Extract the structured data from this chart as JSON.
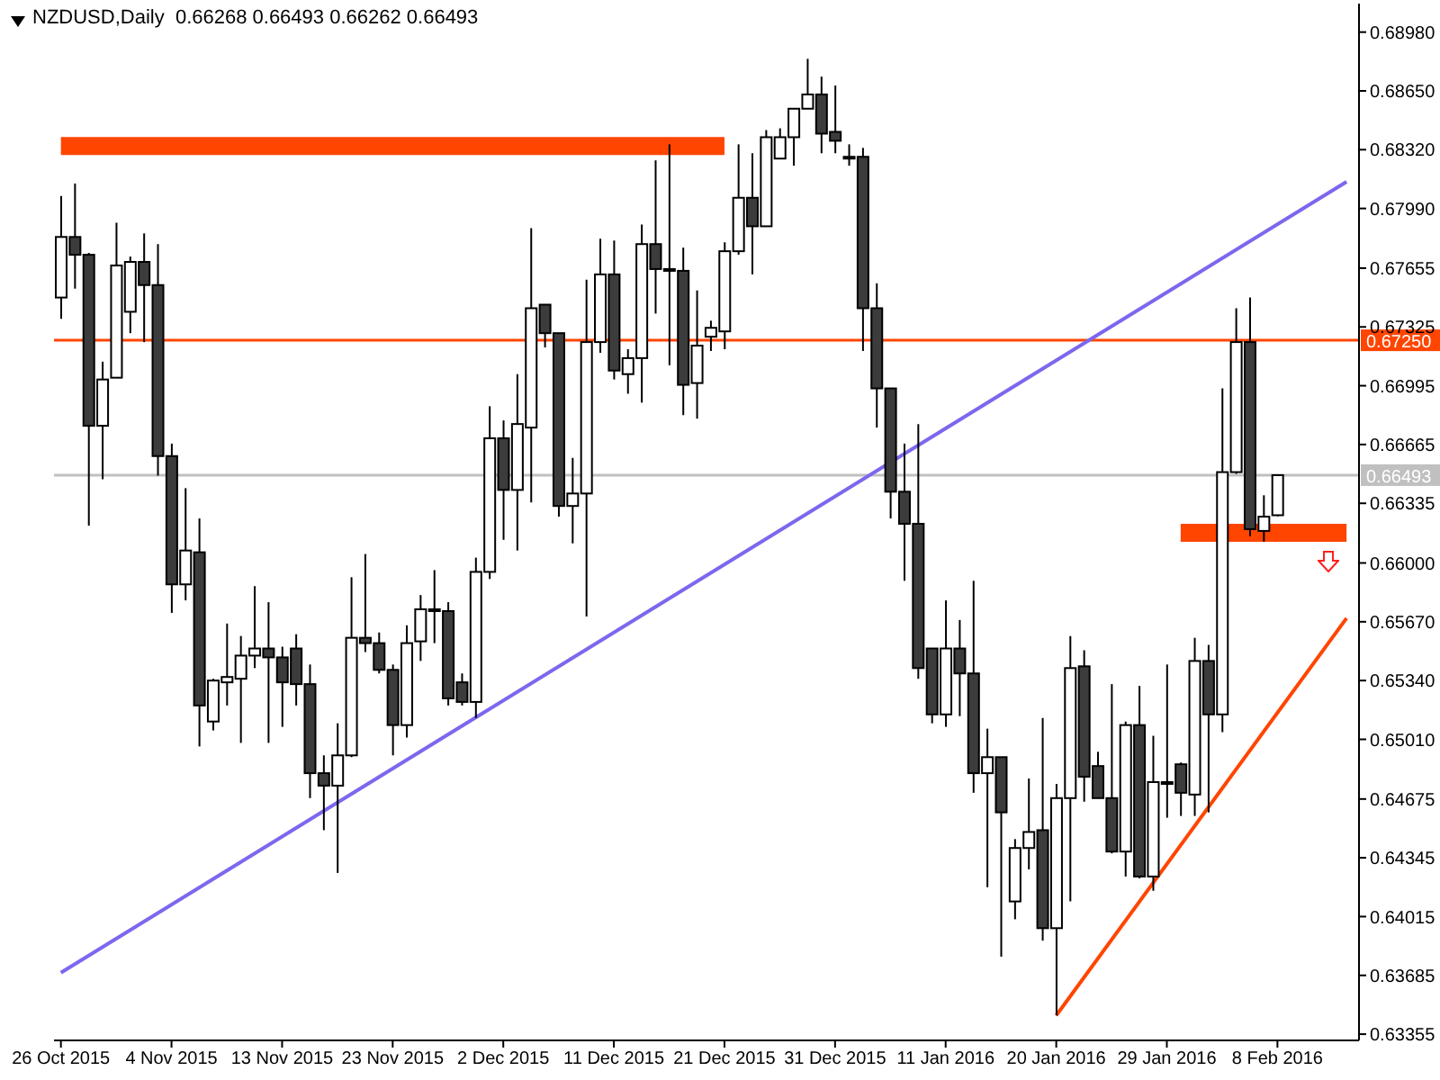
{
  "chart_data": {
    "type": "candlestick",
    "title": "NZDUSD,Daily  0.66268 0.66493 0.66262 0.66493",
    "categories": [
      "26 Oct 2015",
      null,
      null,
      null,
      null,
      null,
      null,
      null,
      "4 Nov 2015",
      null,
      null,
      null,
      null,
      null,
      null,
      null,
      "13 Nov 2015",
      null,
      null,
      null,
      null,
      null,
      null,
      null,
      "23 Nov 2015",
      null,
      null,
      null,
      null,
      null,
      null,
      null,
      "2 Dec 2015",
      null,
      null,
      null,
      null,
      null,
      null,
      null,
      "11 Dec 2015",
      null,
      null,
      null,
      null,
      null,
      null,
      null,
      "21 Dec 2015",
      null,
      null,
      null,
      null,
      null,
      null,
      null,
      "31 Dec 2015",
      null,
      null,
      null,
      null,
      null,
      null,
      null,
      "11 Jan 2016",
      null,
      null,
      null,
      null,
      null,
      null,
      null,
      "20 Jan 2016",
      null,
      null,
      null,
      null,
      null,
      null,
      null,
      "29 Jan 2016",
      null,
      null,
      null,
      null,
      null,
      null,
      null,
      "8 Feb 2016",
      null,
      null,
      null,
      null,
      null
    ],
    "ohlc": [
      [
        0.6749,
        0.6806,
        0.6737,
        0.6783
      ],
      [
        0.6783,
        0.6813,
        0.6754,
        0.6773
      ],
      [
        0.6773,
        0.6774,
        0.6621,
        0.6677
      ],
      [
        0.6677,
        0.6713,
        0.6647,
        0.6703
      ],
      [
        0.6704,
        0.6791,
        0.6704,
        0.6767
      ],
      [
        0.6741,
        0.6772,
        0.6729,
        0.6769
      ],
      [
        0.6769,
        0.6785,
        0.6724,
        0.6756
      ],
      [
        0.6756,
        0.6779,
        0.6649,
        0.666
      ],
      [
        0.666,
        0.6667,
        0.6572,
        0.6588
      ],
      [
        0.6588,
        0.6642,
        0.6579,
        0.6607
      ],
      [
        0.6606,
        0.6625,
        0.6497,
        0.652
      ],
      [
        0.6511,
        0.6535,
        0.6506,
        0.6534
      ],
      [
        0.6533,
        0.6566,
        0.652,
        0.6536
      ],
      [
        0.6535,
        0.6559,
        0.6499,
        0.6548
      ],
      [
        0.6548,
        0.6587,
        0.6541,
        0.6552
      ],
      [
        0.6552,
        0.6578,
        0.6499,
        0.6547
      ],
      [
        0.6547,
        0.6553,
        0.6508,
        0.6533
      ],
      [
        0.6552,
        0.656,
        0.652,
        0.6532
      ],
      [
        0.6532,
        0.6543,
        0.6468,
        0.6482
      ],
      [
        0.6482,
        0.6492,
        0.645,
        0.6475
      ],
      [
        0.6475,
        0.651,
        0.6426,
        0.6492
      ],
      [
        0.6492,
        0.6592,
        0.6491,
        0.6558
      ],
      [
        0.6558,
        0.6605,
        0.655,
        0.6555
      ],
      [
        0.6555,
        0.6561,
        0.6538,
        0.654
      ],
      [
        0.654,
        0.6543,
        0.6492,
        0.6509
      ],
      [
        0.6509,
        0.6565,
        0.6502,
        0.6555
      ],
      [
        0.6556,
        0.6582,
        0.6545,
        0.6574
      ],
      [
        0.6574,
        0.6596,
        0.6555,
        0.6574
      ],
      [
        0.6573,
        0.6578,
        0.652,
        0.6524
      ],
      [
        0.6533,
        0.6538,
        0.652,
        0.6522
      ],
      [
        0.6522,
        0.6603,
        0.6513,
        0.6595
      ],
      [
        0.6595,
        0.6688,
        0.6591,
        0.667
      ],
      [
        0.667,
        0.668,
        0.6613,
        0.6641
      ],
      [
        0.6641,
        0.6706,
        0.6607,
        0.6678
      ],
      [
        0.6676,
        0.6788,
        0.6634,
        0.6743
      ],
      [
        0.6745,
        0.6745,
        0.6721,
        0.6729
      ],
      [
        0.6729,
        0.6729,
        0.6626,
        0.6632
      ],
      [
        0.6632,
        0.6659,
        0.6611,
        0.6639
      ],
      [
        0.6639,
        0.6759,
        0.657,
        0.6724
      ],
      [
        0.6724,
        0.6782,
        0.6718,
        0.6762
      ],
      [
        0.6762,
        0.6781,
        0.6703,
        0.6708
      ],
      [
        0.6706,
        0.672,
        0.6695,
        0.6715
      ],
      [
        0.6715,
        0.679,
        0.669,
        0.6779
      ],
      [
        0.6779,
        0.6826,
        0.674,
        0.6765
      ],
      [
        0.6765,
        0.6835,
        0.6711,
        0.6764
      ],
      [
        0.6764,
        0.6777,
        0.6683,
        0.67
      ],
      [
        0.6701,
        0.6753,
        0.6681,
        0.6722
      ],
      [
        0.6727,
        0.6736,
        0.6719,
        0.6732
      ],
      [
        0.673,
        0.678,
        0.672,
        0.6775
      ],
      [
        0.6775,
        0.6835,
        0.6773,
        0.6805
      ],
      [
        0.6805,
        0.683,
        0.6762,
        0.6789
      ],
      [
        0.6789,
        0.6843,
        0.6789,
        0.6839
      ],
      [
        0.6827,
        0.6844,
        0.6827,
        0.6839
      ],
      [
        0.6839,
        0.6855,
        0.6823,
        0.6855
      ],
      [
        0.6855,
        0.6883,
        0.6855,
        0.6863
      ],
      [
        0.6863,
        0.6873,
        0.683,
        0.6841
      ],
      [
        0.6842,
        0.6868,
        0.683,
        0.6837
      ],
      [
        0.6828,
        0.6835,
        0.6823,
        0.6827
      ],
      [
        0.6828,
        0.6833,
        0.6719,
        0.6743
      ],
      [
        0.6743,
        0.6757,
        0.6676,
        0.6698
      ],
      [
        0.6698,
        0.6698,
        0.6625,
        0.664
      ],
      [
        0.664,
        0.6667,
        0.659,
        0.6622
      ],
      [
        0.6622,
        0.6678,
        0.6535,
        0.6541
      ],
      [
        0.6552,
        0.6552,
        0.651,
        0.6515
      ],
      [
        0.6515,
        0.6579,
        0.6508,
        0.6552
      ],
      [
        0.6552,
        0.6568,
        0.6514,
        0.6538
      ],
      [
        0.6538,
        0.659,
        0.6471,
        0.6482
      ],
      [
        0.6482,
        0.6507,
        0.6418,
        0.6491
      ],
      [
        0.6491,
        0.6491,
        0.6379,
        0.646
      ],
      [
        0.641,
        0.6445,
        0.64,
        0.644
      ],
      [
        0.644,
        0.6479,
        0.6428,
        0.6449
      ],
      [
        0.645,
        0.6513,
        0.6388,
        0.6395
      ],
      [
        0.6395,
        0.6476,
        0.6346,
        0.6468
      ],
      [
        0.6468,
        0.6559,
        0.641,
        0.6541
      ],
      [
        0.6542,
        0.6551,
        0.6466,
        0.648
      ],
      [
        0.6486,
        0.6494,
        0.6468,
        0.6468
      ],
      [
        0.6468,
        0.6532,
        0.6437,
        0.6438
      ],
      [
        0.6438,
        0.6511,
        0.6424,
        0.6509
      ],
      [
        0.6509,
        0.6531,
        0.6423,
        0.6424
      ],
      [
        0.6424,
        0.6503,
        0.6416,
        0.6477
      ],
      [
        0.6477,
        0.6543,
        0.6457,
        0.6477
      ],
      [
        0.6487,
        0.6488,
        0.6458,
        0.6471
      ],
      [
        0.647,
        0.6558,
        0.6458,
        0.6545
      ],
      [
        0.6545,
        0.6554,
        0.646,
        0.6515
      ],
      [
        0.6515,
        0.6698,
        0.6505,
        0.6651
      ],
      [
        0.6651,
        0.6743,
        0.665,
        0.6724
      ],
      [
        0.6724,
        0.6749,
        0.6615,
        0.6619
      ],
      [
        0.6618,
        0.6638,
        0.6612,
        0.6626
      ],
      [
        0.66268,
        0.66493,
        0.66262,
        0.66493
      ],
      null,
      null,
      null,
      null,
      null
    ],
    "series": [
      {
        "type": "line",
        "color": "#ff4500",
        "values": [
          0.6834,
          null,
          null,
          null,
          null,
          null,
          null,
          null,
          null,
          null,
          null,
          null,
          null,
          null,
          null,
          null,
          null,
          null,
          null,
          null,
          null,
          null,
          null,
          null,
          null,
          null,
          null,
          null,
          null,
          null,
          null,
          null,
          null,
          null,
          null,
          null,
          null,
          null,
          null,
          null,
          null,
          null,
          null,
          null,
          null,
          null,
          null,
          null,
          0.6834,
          null,
          null,
          null,
          null,
          null,
          null,
          null,
          null,
          null,
          null,
          null,
          null,
          null,
          null,
          null,
          null,
          null,
          null,
          null,
          null,
          null,
          null,
          null,
          null,
          null,
          null,
          null,
          null,
          null,
          null,
          null,
          null,
          null,
          null,
          null,
          null,
          null,
          null,
          null,
          null,
          null,
          null,
          null,
          null,
          null
        ]
      },
      {
        "type": "line",
        "color": "#ff4500",
        "values": [
          null,
          null,
          null,
          null,
          null,
          null,
          null,
          null,
          null,
          null,
          null,
          null,
          null,
          null,
          null,
          null,
          null,
          null,
          null,
          null,
          null,
          null,
          null,
          null,
          null,
          null,
          null,
          null,
          null,
          null,
          null,
          null,
          null,
          null,
          null,
          null,
          null,
          null,
          null,
          null,
          null,
          null,
          null,
          null,
          null,
          null,
          null,
          null,
          null,
          null,
          null,
          null,
          null,
          null,
          null,
          null,
          null,
          null,
          null,
          null,
          null,
          null,
          null,
          null,
          null,
          null,
          null,
          null,
          null,
          null,
          null,
          null,
          null,
          null,
          null,
          null,
          null,
          null,
          null,
          null,
          null,
          0.6617,
          null,
          null,
          null,
          null,
          null,
          null,
          null,
          null,
          null,
          null,
          null,
          0.6617
        ]
      },
      {
        "type": "line",
        "color": "#7b68ee",
        "values": [
          0.637,
          null,
          null,
          null,
          null,
          null,
          null,
          null,
          null,
          null,
          null,
          null,
          null,
          null,
          null,
          null,
          null,
          null,
          null,
          null,
          null,
          null,
          null,
          null,
          null,
          null,
          null,
          null,
          null,
          null,
          null,
          null,
          null,
          null,
          null,
          null,
          null,
          null,
          null,
          null,
          null,
          null,
          null,
          null,
          null,
          null,
          null,
          null,
          null,
          null,
          null,
          null,
          null,
          null,
          null,
          null,
          null,
          null,
          null,
          null,
          null,
          null,
          null,
          null,
          null,
          null,
          null,
          null,
          null,
          null,
          null,
          null,
          null,
          null,
          null,
          null,
          null,
          null,
          null,
          null,
          null,
          null,
          null,
          null,
          null,
          null,
          null,
          null,
          null,
          null,
          null,
          null,
          null,
          0.6814
        ]
      },
      {
        "type": "line",
        "color": "#ff4500",
        "values": [
          null,
          null,
          null,
          null,
          null,
          null,
          null,
          null,
          null,
          null,
          null,
          null,
          null,
          null,
          null,
          null,
          null,
          null,
          null,
          null,
          null,
          null,
          null,
          null,
          null,
          null,
          null,
          null,
          null,
          null,
          null,
          null,
          null,
          null,
          null,
          null,
          null,
          null,
          null,
          null,
          null,
          null,
          null,
          null,
          null,
          null,
          null,
          null,
          null,
          null,
          null,
          null,
          null,
          null,
          null,
          null,
          null,
          null,
          null,
          null,
          null,
          null,
          null,
          null,
          null,
          null,
          null,
          null,
          null,
          null,
          null,
          null,
          0.6346,
          null,
          null,
          null,
          null,
          null,
          null,
          null,
          null,
          null,
          null,
          null,
          null,
          null,
          null,
          null,
          null,
          null,
          null,
          null,
          null,
          0.6569
        ]
      }
    ],
    "ylim": [
      0.6332,
      0.6914
    ],
    "yticks": [
      {
        "value": 0.6898,
        "label": "0.68980"
      },
      {
        "value": 0.6865,
        "label": "0.68650"
      },
      {
        "value": 0.6832,
        "label": "0.68320"
      },
      {
        "value": 0.6799,
        "label": "0.67990"
      },
      {
        "value": 0.67655,
        "label": "0.67655"
      },
      {
        "value": 0.67325,
        "label": "0.67325"
      },
      {
        "value": 0.66995,
        "label": "0.66995"
      },
      {
        "value": 0.66665,
        "label": "0.66665"
      },
      {
        "value": 0.66335,
        "label": "0.66335"
      },
      {
        "value": 0.66,
        "label": "0.66000"
      },
      {
        "value": 0.6567,
        "label": "0.65670"
      },
      {
        "value": 0.6534,
        "label": "0.65340"
      },
      {
        "value": 0.6501,
        "label": "0.65010"
      },
      {
        "value": 0.64675,
        "label": "0.64675"
      },
      {
        "value": 0.64345,
        "label": "0.64345"
      },
      {
        "value": 0.64015,
        "label": "0.64015"
      },
      {
        "value": 0.63685,
        "label": "0.63685"
      },
      {
        "value": 0.63355,
        "label": "0.63355"
      }
    ],
    "ref_lines": [
      {
        "axis": "y",
        "value": 0.6725,
        "label": "0.67250",
        "color": "#ff4500"
      },
      {
        "axis": "y",
        "value": 0.66493,
        "label": "0.66493",
        "color": "#c0c0c0"
      }
    ]
  }
}
